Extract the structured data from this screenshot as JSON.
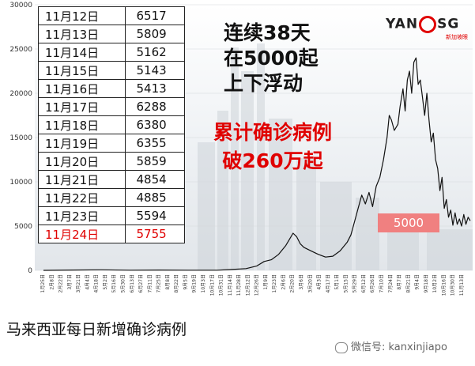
{
  "chart_data": {
    "type": "line",
    "title": "",
    "xlabel": "",
    "ylabel": "",
    "ylim": [
      0,
      30000
    ],
    "y_ticks": [
      0,
      5000,
      10000,
      15000,
      20000,
      25000,
      30000
    ],
    "x_tick_labels": [
      "1月25日",
      "2月8日",
      "2月22日",
      "3月7日",
      "3月21日",
      "4月4日",
      "4月18日",
      "5月2日",
      "5月16日",
      "5月30日",
      "6月13日",
      "6月27日",
      "7月11日",
      "7月25日",
      "8月8日",
      "8月22日",
      "9月5日",
      "9月19日",
      "10月3日",
      "10月17日",
      "10月31日",
      "11月14日",
      "11月28日",
      "12月12日",
      "12月26日",
      "1月9日",
      "1月23日",
      "2月6日",
      "2月20日",
      "3月6日",
      "3月20日",
      "4月3日",
      "4月17日",
      "5月1日",
      "5月15日",
      "5月29日",
      "6月12日",
      "6月26日",
      "7月10日",
      "7月24日",
      "8月7日",
      "8月21日",
      "9月4日",
      "9月18日",
      "10月2日",
      "10月16日",
      "10月30日",
      "11月13日"
    ],
    "series": [
      {
        "name": "",
        "points": [
          [
            0,
            0
          ],
          [
            40,
            40
          ],
          [
            80,
            60
          ],
          [
            120,
            20
          ],
          [
            160,
            40
          ],
          [
            200,
            20
          ],
          [
            240,
            20
          ],
          [
            260,
            100
          ],
          [
            280,
            200
          ],
          [
            295,
            500
          ],
          [
            305,
            1000
          ],
          [
            315,
            1200
          ],
          [
            325,
            1800
          ],
          [
            335,
            2800
          ],
          [
            340,
            3500
          ],
          [
            345,
            4200
          ],
          [
            350,
            3800
          ],
          [
            355,
            3000
          ],
          [
            360,
            2600
          ],
          [
            370,
            2200
          ],
          [
            380,
            1800
          ],
          [
            390,
            1500
          ],
          [
            400,
            1600
          ],
          [
            410,
            2200
          ],
          [
            420,
            3200
          ],
          [
            425,
            4000
          ],
          [
            430,
            5500
          ],
          [
            435,
            7000
          ],
          [
            440,
            8500
          ],
          [
            445,
            7500
          ],
          [
            450,
            8800
          ],
          [
            455,
            7200
          ],
          [
            460,
            9500
          ],
          [
            465,
            10500
          ],
          [
            470,
            12500
          ],
          [
            475,
            15000
          ],
          [
            478,
            17500
          ],
          [
            481,
            17000
          ],
          [
            485,
            15800
          ],
          [
            490,
            16500
          ],
          [
            493,
            18500
          ],
          [
            497,
            20500
          ],
          [
            500,
            18000
          ],
          [
            503,
            21500
          ],
          [
            506,
            22500
          ],
          [
            509,
            20000
          ],
          [
            512,
            23500
          ],
          [
            515,
            24000
          ],
          [
            518,
            21000
          ],
          [
            521,
            21500
          ],
          [
            524,
            19500
          ],
          [
            527,
            17500
          ],
          [
            530,
            20000
          ],
          [
            533,
            17000
          ],
          [
            536,
            14500
          ],
          [
            539,
            15500
          ],
          [
            542,
            12500
          ],
          [
            545,
            11500
          ],
          [
            548,
            9000
          ],
          [
            551,
            10500
          ],
          [
            554,
            7000
          ],
          [
            557,
            8000
          ],
          [
            560,
            6000
          ],
          [
            563,
            6800
          ],
          [
            566,
            5100
          ],
          [
            569,
            6500
          ],
          [
            572,
            5200
          ],
          [
            575,
            5800
          ],
          [
            578,
            5000
          ],
          [
            581,
            6300
          ],
          [
            584,
            5200
          ],
          [
            587,
            6000
          ],
          [
            590,
            5600
          ]
        ]
      }
    ],
    "annotation_label": "5000",
    "annotation_value": 5000,
    "recent_table": {
      "rows": [
        {
          "date": "11月12日",
          "value": "6517"
        },
        {
          "date": "11月13日",
          "value": "5809"
        },
        {
          "date": "11月14日",
          "value": "5162"
        },
        {
          "date": "11月15日",
          "value": "5143"
        },
        {
          "date": "11月16日",
          "value": "5413"
        },
        {
          "date": "11月17日",
          "value": "6288"
        },
        {
          "date": "11月18日",
          "value": "6380"
        },
        {
          "date": "11月19日",
          "value": "6355"
        },
        {
          "date": "11月20日",
          "value": "5859"
        },
        {
          "date": "11月21日",
          "value": "4854"
        },
        {
          "date": "11月22日",
          "value": "4885"
        },
        {
          "date": "11月23日",
          "value": "5594"
        },
        {
          "date": "11月24日",
          "value": "5755"
        }
      ],
      "highlight_index": 12
    }
  },
  "headline": [
    "连续38天",
    "在5000起",
    "上下浮动"
  ],
  "red_headline": [
    "累计确诊病例",
    "破260万起"
  ],
  "logo": {
    "left": "YAN",
    "right": "SG",
    "subtitle": "新加坡眼"
  },
  "caption": "马来西亚每日新增确诊病例",
  "watermark": "微信号: kanxinjiapo",
  "colors": {
    "line": "#111111",
    "highlight": "#e00000",
    "annotation_bg": "#f08080"
  }
}
